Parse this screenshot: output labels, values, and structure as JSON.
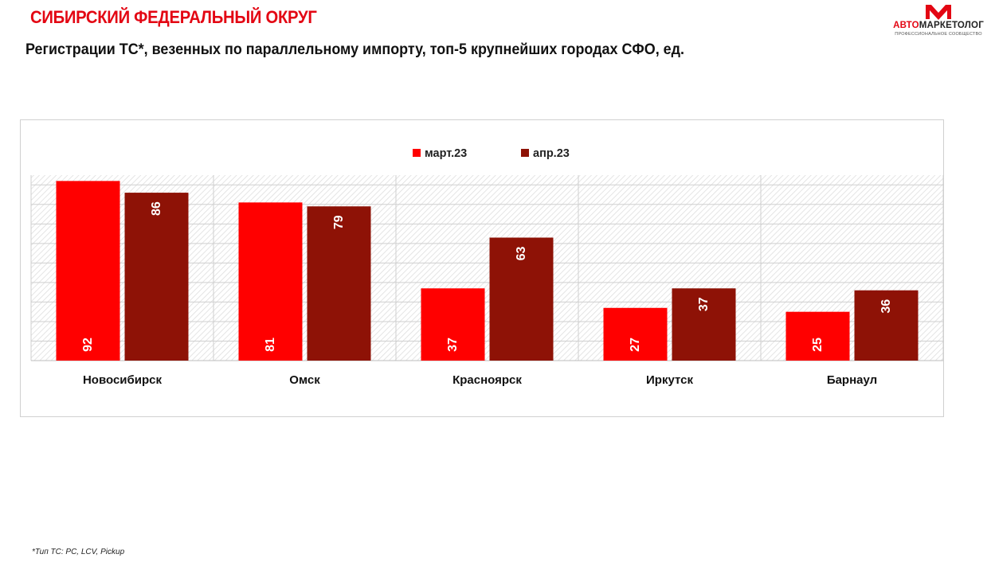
{
  "header": {
    "region_title": "СИБИРСКИЙ ФЕДЕРАЛЬНЫЙ ОКРУГ",
    "chart_title": "Регистрации ТС*, везенных по параллельному импорту, топ-5 крупнейших городах СФО, ед."
  },
  "logo": {
    "name_accent": "АВТО",
    "name_rest": "МАРКЕТОЛОГ",
    "tagline": "ПРОФЕССИОНАЛЬНОЕ СООБЩЕСТВО"
  },
  "footnote": "*Тип ТС: PC, LCV, Pickup",
  "colors": {
    "accent": "#e30613",
    "series_march": "#ff0000",
    "series_april": "#8e1206"
  },
  "chart_data": {
    "type": "bar",
    "title": "Регистрации ТС*, везенных по параллельному импорту, топ-5 крупнейших городах СФО, ед.",
    "categories": [
      "Новосибирск",
      "Омск",
      "Красноярск",
      "Иркутск",
      "Барнаул"
    ],
    "series": [
      {
        "name": "март.23",
        "values": [
          92,
          81,
          37,
          27,
          25
        ],
        "color": "#ff0000"
      },
      {
        "name": "апр.23",
        "values": [
          86,
          79,
          63,
          37,
          36
        ],
        "color": "#8e1206"
      }
    ],
    "ylim": [
      0,
      95
    ],
    "xlabel": "",
    "ylabel": "",
    "grid": true,
    "legend": "top-center",
    "data_labels": true
  }
}
